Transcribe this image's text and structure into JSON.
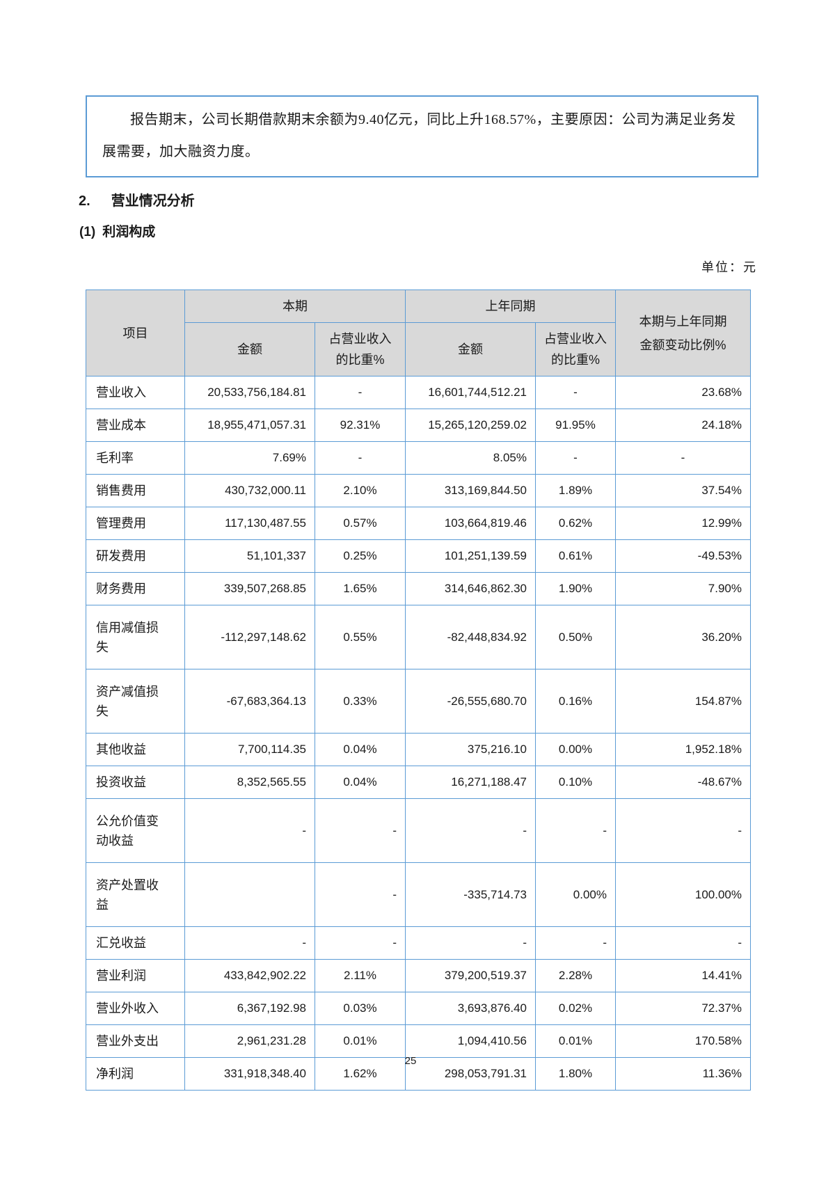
{
  "note_box": {
    "text": "报告期末，公司长期借款期末余额为9.40亿元，同比上升168.57%，主要原因：公司为满足业务发展需要，加大融资力度。"
  },
  "headings": {
    "section_number": "2.",
    "section_title": "营业情况分析",
    "subsection_number": "(1)",
    "subsection_title": "利润构成"
  },
  "unit_label": "单位：元",
  "table": {
    "header": {
      "item": "项目",
      "current_period": "本期",
      "prior_period": "上年同期",
      "amount": "金额",
      "pct_of_revenue": "占营业收入 的比重%",
      "change_ratio": "本期与上年同期 金额变动比例%"
    },
    "rows": [
      {
        "label": "营业收入",
        "cells": [
          "20,533,756,184.81",
          "-",
          "16,601,744,512.21",
          "-",
          "23.68%"
        ]
      },
      {
        "label": "营业成本",
        "cells": [
          "18,955,471,057.31",
          "92.31%",
          "15,265,120,259.02",
          "91.95%",
          "24.18%"
        ]
      },
      {
        "label": "毛利率",
        "cells": [
          "7.69%",
          "-",
          "8.05%",
          "-",
          "-"
        ],
        "aligns": [
          "right",
          "center",
          "right",
          "center",
          "center"
        ]
      },
      {
        "label": "销售费用",
        "cells": [
          "430,732,000.11",
          "2.10%",
          "313,169,844.50",
          "1.89%",
          "37.54%"
        ]
      },
      {
        "label": "管理费用",
        "cells": [
          "117,130,487.55",
          "0.57%",
          "103,664,819.46",
          "0.62%",
          "12.99%"
        ]
      },
      {
        "label": "研发费用",
        "cells": [
          "51,101,337",
          "0.25%",
          "101,251,139.59",
          "0.61%",
          "-49.53%"
        ]
      },
      {
        "label": "财务费用",
        "cells": [
          "339,507,268.85",
          "1.65%",
          "314,646,862.30",
          "1.90%",
          "7.90%"
        ]
      },
      {
        "label": "信用减值损失",
        "cells": [
          "-112,297,148.62",
          "0.55%",
          "-82,448,834.92",
          "0.50%",
          "36.20%"
        ],
        "tall": true
      },
      {
        "label": "资产减值损失",
        "cells": [
          "-67,683,364.13",
          "0.33%",
          "-26,555,680.70",
          "0.16%",
          "154.87%"
        ],
        "tall": true
      },
      {
        "label": "其他收益",
        "cells": [
          "7,700,114.35",
          "0.04%",
          "375,216.10",
          "0.00%",
          "1,952.18%"
        ]
      },
      {
        "label": "投资收益",
        "cells": [
          "8,352,565.55",
          "0.04%",
          "16,271,188.47",
          "0.10%",
          "-48.67%"
        ]
      },
      {
        "label": "公允价值变动收益",
        "cells": [
          "-",
          "-",
          "-",
          "-",
          "-"
        ],
        "tall": true,
        "aligns": [
          "right",
          "right",
          "right",
          "right",
          "right"
        ]
      },
      {
        "label": "资产处置收益",
        "cells": [
          "",
          "-",
          "-335,714.73",
          "0.00%",
          "100.00%"
        ],
        "tall": true,
        "aligns": [
          "right",
          "right",
          "right",
          "right",
          "right"
        ]
      },
      {
        "label": "汇兑收益",
        "cells": [
          "-",
          "-",
          "-",
          "-",
          "-"
        ],
        "aligns": [
          "right",
          "right",
          "right",
          "right",
          "right"
        ]
      },
      {
        "label": "营业利润",
        "cells": [
          "433,842,902.22",
          "2.11%",
          "379,200,519.37",
          "2.28%",
          "14.41%"
        ]
      },
      {
        "label": "营业外收入",
        "cells": [
          "6,367,192.98",
          "0.03%",
          "3,693,876.40",
          "0.02%",
          "72.37%"
        ]
      },
      {
        "label": "营业外支出",
        "cells": [
          "2,961,231.28",
          "0.01%",
          "1,094,410.56",
          "0.01%",
          "170.58%"
        ]
      },
      {
        "label": "净利润",
        "cells": [
          "331,918,348.40",
          "1.62%",
          "298,053,791.31",
          "1.80%",
          "11.36%"
        ]
      }
    ],
    "fix_dash_amount_current": "-"
  },
  "footer": {
    "page_number": "25"
  }
}
